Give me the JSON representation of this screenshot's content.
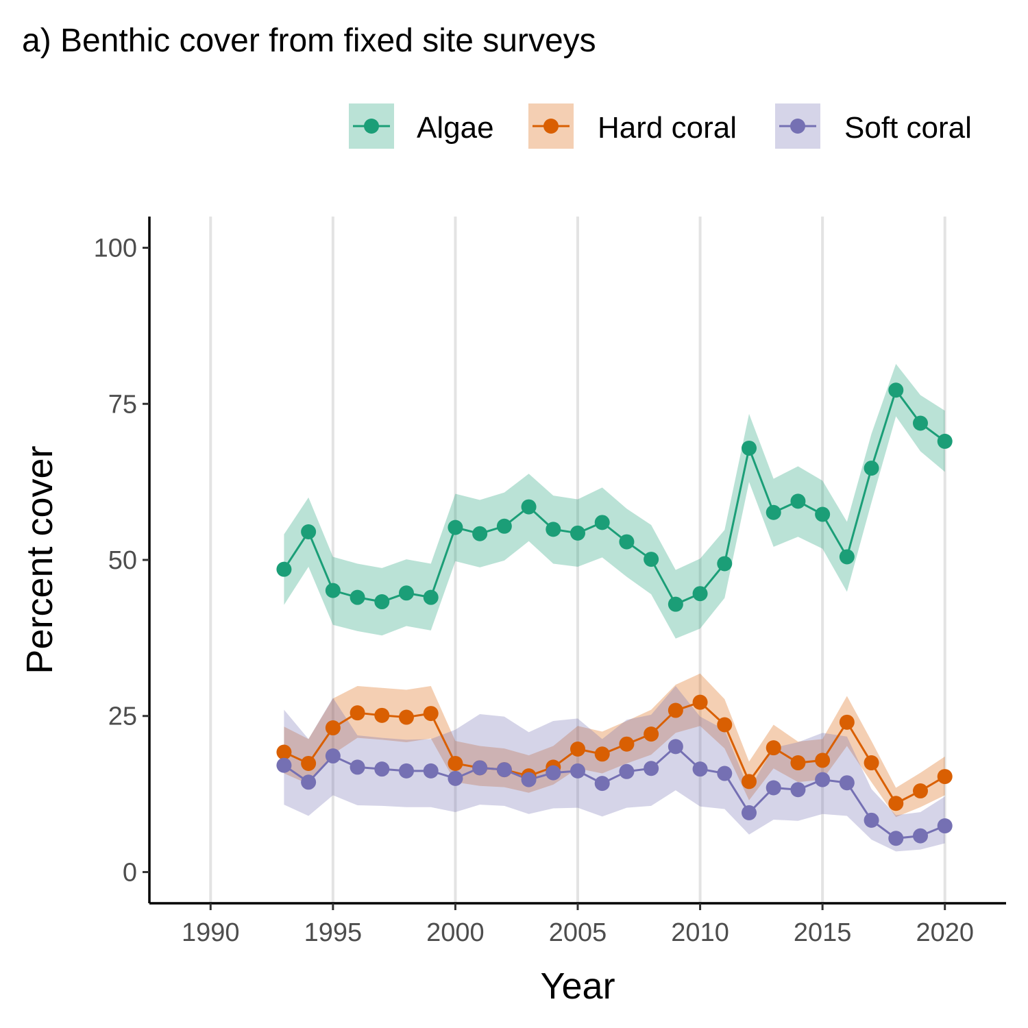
{
  "chart_data": {
    "type": "line",
    "title": "a) Benthic cover from fixed site surveys",
    "xlabel": "Year",
    "ylabel": "Percent cover",
    "xlim": [
      1987.5,
      2022.5
    ],
    "ylim": [
      -5,
      105
    ],
    "x_ticks": [
      1990,
      1995,
      2000,
      2005,
      2010,
      2015,
      2020
    ],
    "y_ticks": [
      0,
      25,
      50,
      75,
      100
    ],
    "grid": "vertical major",
    "legend_position": "top-right",
    "x": [
      1993,
      1994,
      1995,
      1996,
      1997,
      1998,
      1999,
      2000,
      2001,
      2002,
      2003,
      2004,
      2005,
      2006,
      2007,
      2008,
      2009,
      2010,
      2011,
      2012,
      2013,
      2014,
      2015,
      2016,
      2017,
      2018,
      2019,
      2020
    ],
    "series": [
      {
        "name": "Algae",
        "color": "#1b9e77",
        "band_color": "#bce4d8",
        "values": [
          48.5,
          54.5,
          45.1,
          44.0,
          43.3,
          44.7,
          44.0,
          55.2,
          54.2,
          55.4,
          58.5,
          54.9,
          54.3,
          56.0,
          52.9,
          50.1,
          42.9,
          44.6,
          49.4,
          67.9,
          57.6,
          59.4,
          57.3,
          50.5,
          64.7,
          77.2,
          71.9,
          69.0
        ],
        "lower": [
          42.8,
          48.9,
          39.6,
          38.6,
          37.9,
          39.4,
          38.7,
          49.8,
          48.8,
          49.9,
          53.0,
          49.4,
          48.9,
          50.4,
          47.3,
          44.5,
          37.4,
          39.0,
          43.9,
          62.5,
          52.1,
          53.7,
          51.8,
          44.9,
          59.2,
          73.0,
          67.4,
          64.1
        ],
        "upper": [
          54.1,
          60.0,
          50.5,
          49.4,
          48.7,
          50.1,
          49.4,
          60.6,
          59.6,
          60.8,
          63.8,
          60.3,
          59.7,
          61.6,
          58.2,
          55.6,
          48.4,
          50.2,
          54.8,
          73.4,
          63.0,
          65.0,
          62.7,
          56.1,
          70.2,
          81.4,
          76.4,
          73.9
        ]
      },
      {
        "name": "Hard coral",
        "color": "#d95f02",
        "band_color": "#f3cdb0",
        "values": [
          19.2,
          17.4,
          23.1,
          25.5,
          25.1,
          24.8,
          25.4,
          17.4,
          16.7,
          16.4,
          15.4,
          16.8,
          19.7,
          18.9,
          20.5,
          22.1,
          25.9,
          27.2,
          23.6,
          14.5,
          19.9,
          17.5,
          17.9,
          24.0,
          17.5,
          11.0,
          13.0,
          15.3
        ],
        "lower": [
          15.8,
          14.1,
          18.9,
          21.5,
          21.2,
          20.8,
          21.4,
          14.4,
          13.8,
          13.6,
          12.7,
          14.0,
          16.6,
          15.8,
          17.4,
          18.8,
          22.3,
          23.4,
          19.8,
          11.5,
          16.6,
          14.4,
          14.8,
          20.2,
          14.4,
          8.8,
          10.4,
          12.3
        ],
        "upper": [
          23.3,
          21.3,
          27.8,
          29.8,
          29.5,
          29.2,
          29.8,
          21.0,
          20.2,
          19.8,
          18.7,
          20.2,
          23.4,
          22.5,
          24.2,
          26.0,
          30.0,
          31.8,
          27.7,
          17.7,
          23.6,
          20.9,
          21.3,
          28.2,
          21.0,
          13.5,
          15.9,
          18.5
        ]
      },
      {
        "name": "Soft coral",
        "color": "#7570b3",
        "band_color": "#d5d4ea",
        "values": [
          17.1,
          14.4,
          18.6,
          16.8,
          16.5,
          16.2,
          16.2,
          15.0,
          16.7,
          16.4,
          14.8,
          15.9,
          16.2,
          14.2,
          16.1,
          16.6,
          20.1,
          16.5,
          15.8,
          9.5,
          13.5,
          13.2,
          14.8,
          14.3,
          8.3,
          5.4,
          5.8,
          7.4
        ],
        "lower": [
          10.8,
          9.0,
          12.3,
          10.7,
          10.6,
          10.4,
          10.4,
          9.6,
          10.8,
          10.6,
          9.3,
          10.2,
          10.3,
          8.9,
          10.3,
          10.6,
          13.1,
          10.5,
          10.1,
          6.0,
          8.4,
          8.2,
          9.3,
          9.0,
          5.2,
          3.3,
          3.6,
          4.6
        ],
        "upper": [
          26.0,
          21.3,
          27.9,
          21.9,
          21.5,
          21.2,
          21.3,
          22.8,
          25.3,
          24.9,
          22.4,
          24.2,
          24.6,
          21.3,
          24.4,
          25.2,
          29.8,
          24.9,
          22.8,
          13.2,
          19.9,
          20.8,
          22.3,
          21.7,
          13.3,
          9.1,
          9.6,
          12.1
        ]
      }
    ]
  }
}
